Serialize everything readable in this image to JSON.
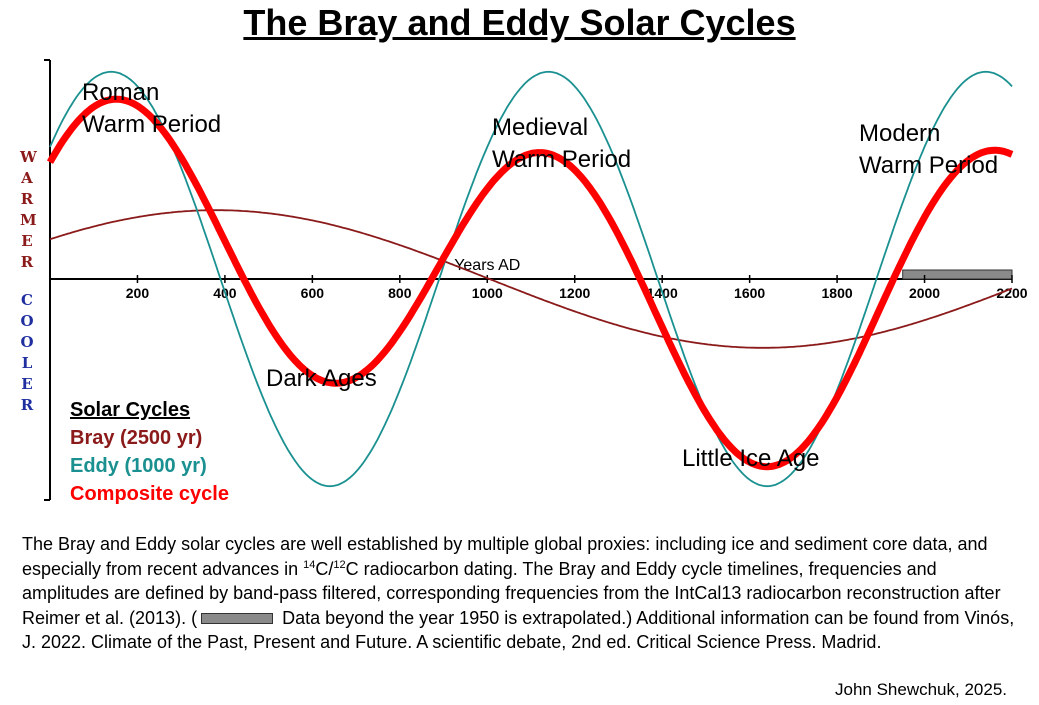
{
  "title": "The Bray and Eddy Solar Cycles",
  "side_labels": {
    "warmer": "WARMER",
    "cooler": "COOLER"
  },
  "chart_data": {
    "type": "line",
    "title": "The Bray and Eddy Solar Cycles",
    "xlabel": "Years AD",
    "ylabel": "",
    "xlim": [
      0,
      2200
    ],
    "ylim": [
      -1.45,
      1.45
    ],
    "x_ticks": [
      200,
      400,
      600,
      800,
      1000,
      1200,
      1400,
      1600,
      1800,
      2000,
      2200
    ],
    "grid": false,
    "legend_position": "bottom-left",
    "legend_title": "Solar Cycles",
    "series": [
      {
        "name": "Bray  (2500 yr)",
        "color": "#8b1a1a",
        "period": 2500,
        "amplitude": 0.465,
        "peak_year": 380,
        "x": [
          0,
          380,
          1005,
          1630,
          2200
        ],
        "y": [
          0.3,
          0.465,
          0,
          -0.465,
          -0.11
        ]
      },
      {
        "name": "Eddy (1000 yr)",
        "color": "#1a9090",
        "period": 1000,
        "amplitude": 1.4,
        "peak_year": 140,
        "x": [
          0,
          140,
          640,
          1140,
          1640,
          2140
        ],
        "y": [
          1.0,
          1.4,
          -1.4,
          1.4,
          -1.4,
          1.4
        ]
      },
      {
        "name": "Composite cycle",
        "color": "#ff0000",
        "x": [
          0,
          150,
          650,
          1130,
          1640,
          2150,
          2200
        ],
        "y": [
          0.85,
          1.37,
          -0.81,
          0.97,
          -1.41,
          0.97,
          0.95
        ]
      }
    ],
    "annotations": [
      {
        "text": "Roman\nWarm Period"
      },
      {
        "text": "Dark Ages"
      },
      {
        "text": "Medieval\nWarm Period"
      },
      {
        "text": "Little Ice Age"
      },
      {
        "text": "Modern\nWarm Period"
      }
    ],
    "extrapolated_range": [
      1950,
      2200
    ]
  },
  "caption": {
    "p1": "The Bray and Eddy solar cycles are well established by multiple global proxies: including ice and sediment core data, and especially from recent advances in ",
    "sup1": "14",
    "p2": "C/",
    "sup2": "12",
    "p3": "C radiocarbon dating.  The Bray and Eddy cycle timelines, frequencies and amplitudes are defined by band-pass filtered, corresponding frequencies from the IntCal13 radiocarbon reconstruction after Reimer et al. (2013).  (",
    "p4": " Data beyond the year 1950 is extrapolated.)  Additional information can be found from Vinós, J. 2022. Climate of the Past, Present and Future. A scientific debate, 2nd ed. Critical Science Press. Madrid."
  },
  "credit": "John Shewchuk, 2025."
}
